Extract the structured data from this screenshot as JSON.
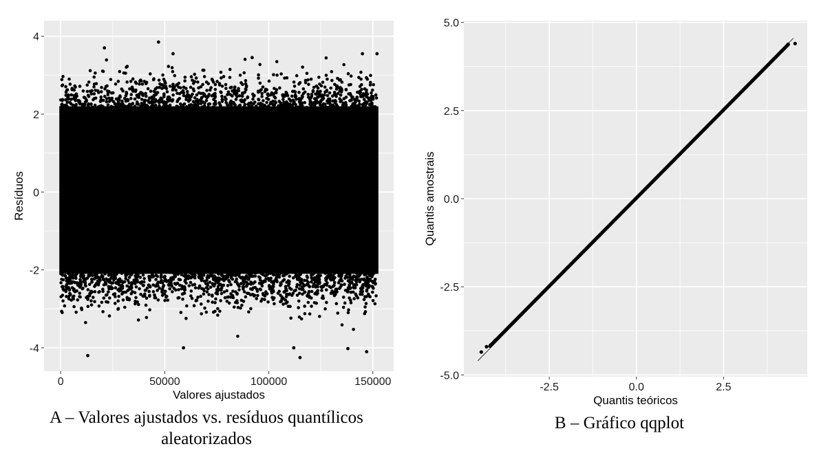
{
  "chart_data": [
    {
      "type": "scatter",
      "caption_line1": "A – Valores ajustados vs. resíduos quantílicos",
      "caption_line2": "aleatorizados",
      "xlabel": "Valores ajustados",
      "ylabel": "Resíduos",
      "xlim": [
        -8000,
        160000
      ],
      "ylim": [
        -4.6,
        4.4
      ],
      "xticks": [
        0,
        50000,
        100000,
        150000
      ],
      "xtick_labels": [
        "0",
        "50000",
        "100000",
        "150000"
      ],
      "yticks": [
        -4,
        -2,
        0,
        2,
        4
      ],
      "ytick_labels": [
        "-4",
        "-2",
        "0",
        "2",
        "4"
      ],
      "grid": true,
      "dense_band": {
        "x_range": [
          0,
          152000
        ],
        "y_range": [
          -2.1,
          2.2
        ]
      },
      "notable_points": [
        {
          "x": 13000,
          "y": -4.2
        },
        {
          "x": 47000,
          "y": 3.85
        },
        {
          "x": 21000,
          "y": 3.7
        },
        {
          "x": 54000,
          "y": 3.55
        },
        {
          "x": 59000,
          "y": -4.0
        },
        {
          "x": 115000,
          "y": -4.25
        },
        {
          "x": 112000,
          "y": -4.0
        },
        {
          "x": 138000,
          "y": -4.02
        },
        {
          "x": 147000,
          "y": -4.1
        },
        {
          "x": 145000,
          "y": 3.55
        },
        {
          "x": 152000,
          "y": 3.55
        },
        {
          "x": 92000,
          "y": 3.45
        }
      ]
    },
    {
      "type": "scatter",
      "caption": "B – Gráfico qqplot",
      "xlabel": "Quantis teóricos",
      "ylabel": "Quantis amostrais",
      "xlim": [
        -4.95,
        4.9
      ],
      "ylim": [
        -5.05,
        5.05
      ],
      "xticks": [
        -2.5,
        0.0,
        2.5
      ],
      "xtick_labels": [
        "-2.5",
        "0.0",
        "2.5"
      ],
      "yticks": [
        -5.0,
        -2.5,
        0.0,
        2.5,
        5.0
      ],
      "ytick_labels": [
        "-5.0",
        "-2.5",
        "0.0",
        "2.5",
        "5.0"
      ],
      "grid": true,
      "reference_line": {
        "x": [
          -4.55,
          4.5
        ],
        "y": [
          -4.6,
          4.55
        ]
      },
      "points_range": {
        "x": [
          -4.45,
          4.55
        ],
        "y": [
          -4.35,
          4.4
        ]
      },
      "tail_points": [
        {
          "x": -4.45,
          "y": -4.35
        },
        {
          "x": -4.3,
          "y": -4.2
        },
        {
          "x": -4.18,
          "y": -4.15
        },
        {
          "x": -4.05,
          "y": -4.02
        },
        {
          "x": 4.35,
          "y": 4.38
        },
        {
          "x": 4.55,
          "y": 4.4
        }
      ]
    }
  ]
}
